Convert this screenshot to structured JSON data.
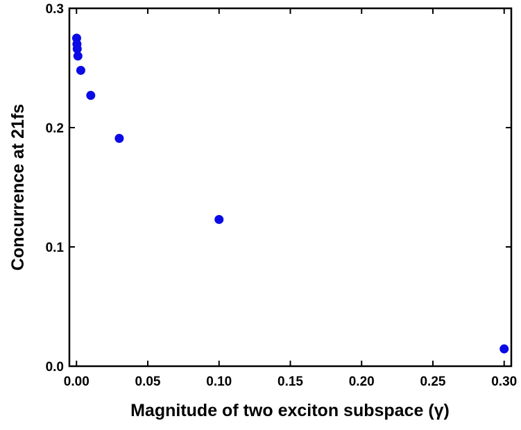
{
  "chart_data": {
    "type": "scatter",
    "x_label": "Magnitude of two exciton subspace (γ)",
    "y_label": "Concurrence at 21fs",
    "series": [
      {
        "color": "#0a0ae6",
        "x": [
          0.0001,
          0.0003,
          0.0005,
          0.001,
          0.003,
          0.01,
          0.03,
          0.1,
          0.3
        ],
        "values": [
          0.275,
          0.27,
          0.266,
          0.26,
          0.248,
          0.227,
          0.191,
          0.123,
          0.0145
        ]
      }
    ],
    "xlim": [
      -0.005,
      0.305
    ],
    "ylim": [
      0,
      0.3
    ],
    "xticks": [
      {
        "value": 0,
        "label": "0.00"
      },
      {
        "value": 0.05,
        "label": "0.05"
      },
      {
        "value": 0.1,
        "label": "0.10"
      },
      {
        "value": 0.15,
        "label": "0.15"
      },
      {
        "value": 0.2,
        "label": "0.20"
      },
      {
        "value": 0.25,
        "label": "0.25"
      },
      {
        "value": 0.3,
        "label": "0.30"
      }
    ],
    "yticks": [
      {
        "value": 0,
        "label": "0.0"
      },
      {
        "value": 0.1,
        "label": "0.1"
      },
      {
        "value": 0.2,
        "label": "0.2"
      },
      {
        "value": 0.3,
        "label": "0.3"
      }
    ]
  }
}
